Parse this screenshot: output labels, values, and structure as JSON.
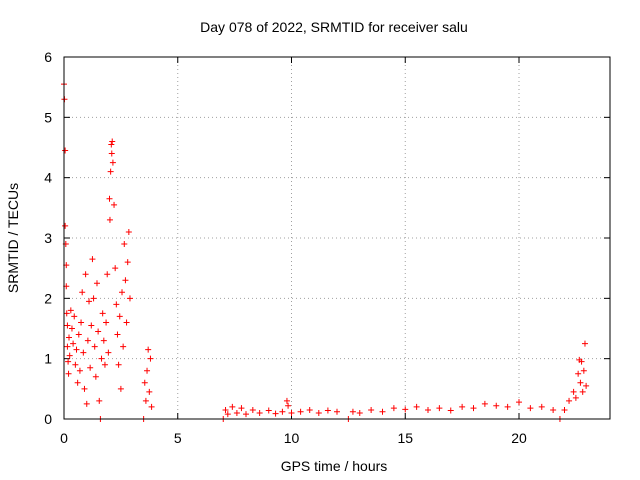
{
  "chart_data": {
    "type": "scatter",
    "title": "Day 078 of 2022, SRMTID for receiver salu",
    "xlabel": "GPS time / hours",
    "ylabel": "SRMTID / TECUs",
    "xlim": [
      0,
      24
    ],
    "ylim": [
      0,
      6
    ],
    "xticks": [
      0,
      5,
      10,
      15,
      20
    ],
    "yticks": [
      0,
      1,
      2,
      3,
      4,
      5,
      6
    ],
    "grid": true,
    "marker": "+",
    "series": [
      {
        "name": "SRMTID",
        "color": "#ff0000",
        "points": [
          [
            0.0,
            5.55
          ],
          [
            0.02,
            5.3
          ],
          [
            0.05,
            4.45
          ],
          [
            0.05,
            3.2
          ],
          [
            0.08,
            2.9
          ],
          [
            0.1,
            2.55
          ],
          [
            0.1,
            2.2
          ],
          [
            0.12,
            1.75
          ],
          [
            0.15,
            1.55
          ],
          [
            0.15,
            1.2
          ],
          [
            0.18,
            0.95
          ],
          [
            0.2,
            0.75
          ],
          [
            0.22,
            1.35
          ],
          [
            0.25,
            1.05
          ],
          [
            0.3,
            1.8
          ],
          [
            0.35,
            1.5
          ],
          [
            0.4,
            1.25
          ],
          [
            0.45,
            1.7
          ],
          [
            0.5,
            0.9
          ],
          [
            0.55,
            1.15
          ],
          [
            0.6,
            0.6
          ],
          [
            0.65,
            1.4
          ],
          [
            0.7,
            0.8
          ],
          [
            0.75,
            1.6
          ],
          [
            0.8,
            2.1
          ],
          [
            0.85,
            1.1
          ],
          [
            0.9,
            0.5
          ],
          [
            0.95,
            2.4
          ],
          [
            1.0,
            0.25
          ],
          [
            1.05,
            1.3
          ],
          [
            1.1,
            1.95
          ],
          [
            1.15,
            0.85
          ],
          [
            1.2,
            1.55
          ],
          [
            1.25,
            2.65
          ],
          [
            1.3,
            2.0
          ],
          [
            1.35,
            1.2
          ],
          [
            1.4,
            0.7
          ],
          [
            1.45,
            2.25
          ],
          [
            1.5,
            1.45
          ],
          [
            1.55,
            0.3
          ],
          [
            1.6,
            0.0
          ],
          [
            1.65,
            1.0
          ],
          [
            1.7,
            1.75
          ],
          [
            1.75,
            1.3
          ],
          [
            1.8,
            0.9
          ],
          [
            1.85,
            1.6
          ],
          [
            1.9,
            2.4
          ],
          [
            1.95,
            1.1
          ],
          [
            2.0,
            3.65
          ],
          [
            2.02,
            3.3
          ],
          [
            2.05,
            4.1
          ],
          [
            2.08,
            4.55
          ],
          [
            2.1,
            4.4
          ],
          [
            2.12,
            4.6
          ],
          [
            2.15,
            4.25
          ],
          [
            2.2,
            3.55
          ],
          [
            2.25,
            2.5
          ],
          [
            2.3,
            1.9
          ],
          [
            2.35,
            1.4
          ],
          [
            2.4,
            0.9
          ],
          [
            2.45,
            1.7
          ],
          [
            2.5,
            0.5
          ],
          [
            2.55,
            2.1
          ],
          [
            2.6,
            1.2
          ],
          [
            2.65,
            2.9
          ],
          [
            2.7,
            2.3
          ],
          [
            2.75,
            1.6
          ],
          [
            2.8,
            2.6
          ],
          [
            2.85,
            3.1
          ],
          [
            2.9,
            2.0
          ],
          [
            3.5,
            0.0
          ],
          [
            3.55,
            0.6
          ],
          [
            3.6,
            0.3
          ],
          [
            3.65,
            0.8
          ],
          [
            3.7,
            1.15
          ],
          [
            3.75,
            0.45
          ],
          [
            3.8,
            1.0
          ],
          [
            3.85,
            0.2
          ],
          [
            7.0,
            0.0
          ],
          [
            7.1,
            0.15
          ],
          [
            7.2,
            0.08
          ],
          [
            7.4,
            0.2
          ],
          [
            7.6,
            0.1
          ],
          [
            7.8,
            0.18
          ],
          [
            8.0,
            0.08
          ],
          [
            8.3,
            0.15
          ],
          [
            8.6,
            0.1
          ],
          [
            9.0,
            0.14
          ],
          [
            9.3,
            0.09
          ],
          [
            9.6,
            0.12
          ],
          [
            9.8,
            0.3
          ],
          [
            9.85,
            0.22
          ],
          [
            10.0,
            0.1
          ],
          [
            10.4,
            0.12
          ],
          [
            10.8,
            0.15
          ],
          [
            11.2,
            0.1
          ],
          [
            11.6,
            0.14
          ],
          [
            12.0,
            0.12
          ],
          [
            12.5,
            0.0
          ],
          [
            12.7,
            0.12
          ],
          [
            13.0,
            0.1
          ],
          [
            13.5,
            0.15
          ],
          [
            14.0,
            0.12
          ],
          [
            14.5,
            0.18
          ],
          [
            15.0,
            0.16
          ],
          [
            15.5,
            0.2
          ],
          [
            16.0,
            0.15
          ],
          [
            16.5,
            0.18
          ],
          [
            17.0,
            0.14
          ],
          [
            17.5,
            0.2
          ],
          [
            18.0,
            0.18
          ],
          [
            18.5,
            0.25
          ],
          [
            19.0,
            0.22
          ],
          [
            19.5,
            0.2
          ],
          [
            20.0,
            0.28
          ],
          [
            20.5,
            0.18
          ],
          [
            21.0,
            0.2
          ],
          [
            21.5,
            0.15
          ],
          [
            21.8,
            0.0
          ],
          [
            22.0,
            0.15
          ],
          [
            22.2,
            0.3
          ],
          [
            22.4,
            0.45
          ],
          [
            22.5,
            0.35
          ],
          [
            22.6,
            0.75
          ],
          [
            22.65,
            0.98
          ],
          [
            22.7,
            0.6
          ],
          [
            22.75,
            0.95
          ],
          [
            22.8,
            0.45
          ],
          [
            22.85,
            0.8
          ],
          [
            22.9,
            1.25
          ],
          [
            22.95,
            0.55
          ]
        ]
      }
    ]
  }
}
